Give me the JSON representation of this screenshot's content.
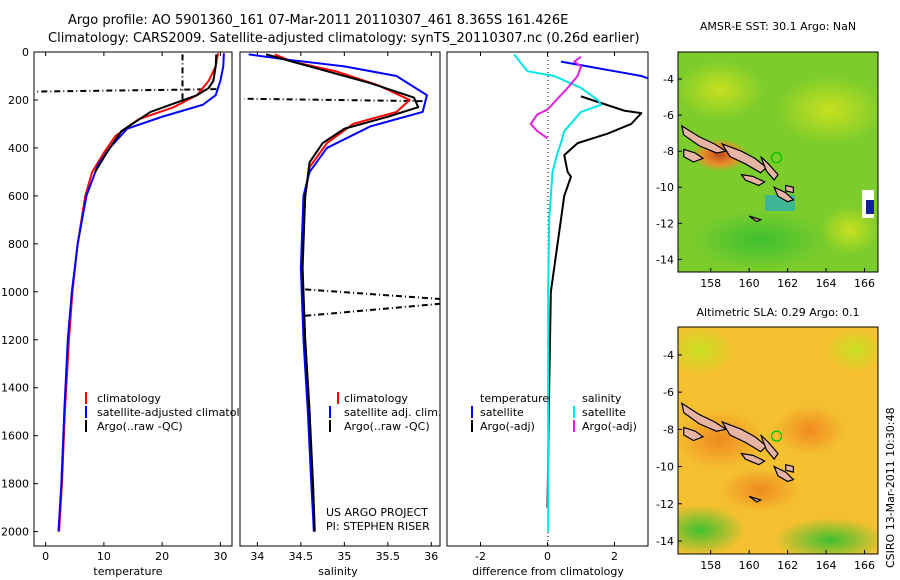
{
  "header": {
    "line1": "Argo profile: AO 5901360_161 07-Mar-2011 20110307_461 8.365S 161.426E",
    "line2": "Climatology: CARS2009. Satellite-adjusted climatology: synTS_20110307.nc (0.26d earlier)"
  },
  "credit": "CSIRO 13-Mar-2011 10:30:48",
  "project_note": {
    "line1": "US ARGO PROJECT",
    "line2": "PI: STEPHEN RISER"
  },
  "colors": {
    "climatology": "#ff0000",
    "satellite": "#0000ff",
    "argo": "#000000",
    "sat_diff_salinity": "#00e5e5",
    "argo_diff_salinity": "#e020e0",
    "map_land": "#e8b4a4"
  },
  "chart_data": [
    {
      "id": "temperature",
      "type": "line",
      "xlabel": "temperature",
      "ylabel": "",
      "xlim": [
        -2,
        32
      ],
      "ylim": [
        2060,
        0
      ],
      "xticks": [
        0,
        10,
        20,
        30
      ],
      "yticks": [
        0,
        200,
        400,
        600,
        800,
        1000,
        1200,
        1400,
        1600,
        1800,
        2000
      ],
      "legend": [
        "climatology",
        "satellite-adjusted climatology",
        "Argo(..raw -QC)"
      ],
      "series": [
        {
          "name": "climatology",
          "color": "#ff0000",
          "x": [
            29.6,
            29.2,
            28.0,
            26.0,
            22.0,
            16.0,
            12.0,
            10.0,
            8.0,
            6.8,
            5.5,
            4.6,
            4.0,
            3.3,
            2.8,
            2.3
          ],
          "y": [
            5,
            60,
            120,
            180,
            230,
            280,
            350,
            420,
            500,
            600,
            800,
            1000,
            1200,
            1500,
            1800,
            2000
          ]
        },
        {
          "name": "satellite-adjusted climatology",
          "color": "#0000ff",
          "x": [
            30.6,
            30.5,
            30.0,
            29.2,
            27.0,
            20.0,
            14.0,
            11.0,
            9.0,
            7.0,
            5.5,
            4.5,
            3.8,
            3.2,
            2.7,
            2.2
          ],
          "y": [
            5,
            60,
            120,
            180,
            220,
            270,
            320,
            400,
            470,
            600,
            800,
            1000,
            1200,
            1500,
            1800,
            2000
          ]
        },
        {
          "name": "Argo(..raw -QC)",
          "color": "#000000",
          "x": [
            29.3,
            29.2,
            28.8,
            28.0,
            26.0,
            18.0,
            13.0,
            10.5,
            8.5
          ],
          "y": [
            10,
            60,
            120,
            150,
            180,
            250,
            330,
            420,
            500
          ]
        }
      ],
      "spikes": [
        {
          "x": [
            29.3,
            -1.5
          ],
          "y": [
            155,
            165
          ]
        },
        {
          "x": [
            23.5,
            23.5
          ],
          "y": [
            10,
            200
          ]
        }
      ]
    },
    {
      "id": "salinity",
      "type": "line",
      "xlabel": "salinity",
      "ylabel": "",
      "xlim": [
        33.8,
        36.1
      ],
      "ylim": [
        2060,
        0
      ],
      "xticks": [
        34,
        34.5,
        35,
        35.5,
        36
      ],
      "yticks": [],
      "legend": [
        "climatology",
        "satellite adj. clim.",
        "Argo(..raw -QC)"
      ],
      "series": [
        {
          "name": "climatology",
          "color": "#ff0000",
          "x": [
            34.2,
            34.4,
            34.9,
            35.4,
            35.75,
            35.6,
            35.1,
            34.8,
            34.6,
            34.55,
            34.5,
            34.55,
            34.6,
            34.63,
            34.65
          ],
          "y": [
            10,
            40,
            80,
            140,
            200,
            250,
            300,
            380,
            480,
            600,
            900,
            1200,
            1500,
            1800,
            2000
          ]
        },
        {
          "name": "satellite adj. clim.",
          "color": "#0000ff",
          "x": [
            33.9,
            34.3,
            35.0,
            35.6,
            35.95,
            35.9,
            35.3,
            34.8,
            34.6,
            34.53,
            34.5,
            34.53,
            34.58,
            34.62,
            34.65
          ],
          "y": [
            10,
            30,
            60,
            100,
            180,
            250,
            310,
            400,
            500,
            600,
            900,
            1200,
            1500,
            1800,
            2000
          ]
        },
        {
          "name": "Argo(..raw -QC)",
          "color": "#000000",
          "x": [
            34.1,
            34.6,
            35.3,
            35.8,
            35.85,
            35.5,
            35.0,
            34.75,
            34.6,
            34.55,
            34.52,
            34.55,
            34.6,
            34.64,
            34.66
          ],
          "y": [
            10,
            60,
            130,
            190,
            230,
            270,
            320,
            380,
            460,
            600,
            900,
            1200,
            1500,
            1800,
            2000
          ]
        }
      ],
      "spikes": [
        {
          "x": [
            35.9,
            33.85
          ],
          "y": [
            205,
            195
          ]
        },
        {
          "x": [
            34.55,
            36.1
          ],
          "y": [
            990,
            1030
          ]
        },
        {
          "x": [
            34.55,
            36.1
          ],
          "y": [
            1100,
            1050
          ]
        }
      ]
    },
    {
      "id": "difference",
      "type": "line",
      "xlabel": "difference from climatology",
      "ylabel": "",
      "xlim": [
        -3,
        3
      ],
      "ylim": [
        2060,
        0
      ],
      "xticks": [
        -2,
        0,
        2
      ],
      "yticks": [],
      "legend_headers": [
        "temperature",
        "salinity"
      ],
      "legend": [
        "satellite",
        "Argo(-adj)",
        "satellite",
        "Argo(-adj)"
      ],
      "series": [
        {
          "name": "satellite",
          "color": "#0000ff",
          "x": [
            0.4,
            1.2,
            2.0,
            2.8,
            3.0
          ],
          "y": [
            40,
            60,
            80,
            100,
            110
          ]
        },
        {
          "name": "Argo(-adj)",
          "color": "#000000",
          "x": [
            1.0,
            2.3,
            2.8,
            2.5,
            1.8,
            0.9,
            0.5,
            0.6,
            0.7,
            0.5,
            0.3,
            0.1,
            0.05,
            0.0
          ],
          "y": [
            185,
            245,
            255,
            300,
            340,
            380,
            430,
            500,
            520,
            600,
            800,
            1000,
            1400,
            1900
          ]
        },
        {
          "name": "satellite",
          "color": "#00e5e5",
          "x": [
            -1.0,
            -0.6,
            0.2,
            1.0,
            1.5,
            1.6,
            1.0,
            0.5,
            0.4,
            0.3,
            0.15,
            0.05,
            0.02,
            0.02
          ],
          "y": [
            10,
            80,
            100,
            150,
            200,
            220,
            250,
            330,
            380,
            420,
            500,
            700,
            1000,
            2000
          ]
        },
        {
          "name": "Argo(-adj)",
          "color": "#e020e0",
          "x": [
            1.0,
            0.8,
            1.0,
            0.9,
            0.6,
            0.0,
            -0.3,
            -0.5,
            -0.3,
            0.0
          ],
          "y": [
            20,
            40,
            60,
            100,
            150,
            240,
            260,
            300,
            330,
            360
          ]
        }
      ]
    }
  ],
  "maps": [
    {
      "title": "AMSR-E SST: 30.1 Argo: NaN",
      "x_ticks": [
        158,
        160,
        162,
        164,
        166
      ],
      "y_ticks": [
        -4,
        -6,
        -8,
        -10,
        -12,
        -14
      ],
      "lon_range": [
        156.3,
        166.7
      ],
      "lat_range": [
        -2.5,
        -14.7
      ],
      "argo_marker": {
        "lon": 161.426,
        "lat": -8.365
      }
    },
    {
      "title": "Altimetric SLA: 0.29 Argo: 0.1",
      "x_ticks": [
        158,
        160,
        162,
        164,
        166
      ],
      "y_ticks": [
        -4,
        -6,
        -8,
        -10,
        -12,
        -14
      ],
      "lon_range": [
        156.3,
        166.7
      ],
      "lat_range": [
        -2.5,
        -14.7
      ],
      "argo_marker": {
        "lon": 161.426,
        "lat": -8.365
      }
    }
  ]
}
